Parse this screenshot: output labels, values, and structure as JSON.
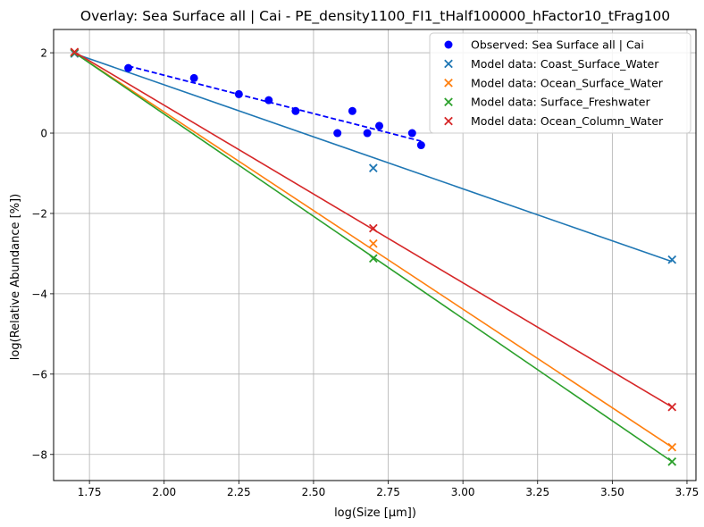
{
  "chart_data": {
    "type": "scatter",
    "title": "Overlay: Sea Surface all | Cai - PE_density1100_FI1_tHalf100000_hFactor10_tFrag100",
    "xlabel": "log(Size [µm])",
    "ylabel": "log(Relative Abundance [%])",
    "xlim": [
      1.63,
      3.78
    ],
    "ylim": [
      -8.65,
      2.58
    ],
    "xticks": [
      1.75,
      2.0,
      2.25,
      2.5,
      2.75,
      3.0,
      3.25,
      3.5,
      3.75
    ],
    "xtick_labels": [
      "1.75",
      "2.00",
      "2.25",
      "2.50",
      "2.75",
      "3.00",
      "3.25",
      "3.50",
      "3.75"
    ],
    "yticks": [
      2,
      0,
      -2,
      -4,
      -6,
      -8
    ],
    "ytick_labels": [
      "2",
      "0",
      "−2",
      "−4",
      "−6",
      "−8"
    ],
    "grid": true,
    "legend_position": "top-right",
    "observed": {
      "name": "Observed: Sea Surface all | Cai",
      "color": "#0000ff",
      "marker": "circle",
      "x": [
        1.88,
        2.1,
        2.25,
        2.35,
        2.44,
        2.58,
        2.63,
        2.68,
        2.72,
        2.83,
        2.86
      ],
      "y": [
        1.62,
        1.37,
        0.97,
        0.82,
        0.55,
        0.0,
        0.55,
        0.0,
        0.18,
        0.0,
        -0.3
      ],
      "fit": {
        "x": [
          1.88,
          2.86
        ],
        "y": [
          1.67,
          -0.2
        ],
        "style": "dashed"
      }
    },
    "series": [
      {
        "name": "Model data: Coast_Surface_Water",
        "color": "#1f77b4",
        "marker": "x",
        "x": [
          1.7,
          2.7,
          3.7
        ],
        "y": [
          1.98,
          -0.87,
          -3.15
        ],
        "line_x": [
          1.7,
          3.7
        ],
        "line_y": [
          1.98,
          -3.2
        ]
      },
      {
        "name": "Model data: Ocean_Surface_Water",
        "color": "#ff7f0e",
        "marker": "x",
        "x": [
          1.7,
          2.7,
          3.7
        ],
        "y": [
          2.0,
          -2.75,
          -7.82
        ],
        "line_x": [
          1.7,
          3.7
        ],
        "line_y": [
          2.0,
          -7.82
        ]
      },
      {
        "name": "Model data: Surface_Freshwater",
        "color": "#2ca02c",
        "marker": "x",
        "x": [
          1.7,
          2.7,
          3.7
        ],
        "y": [
          2.0,
          -3.12,
          -8.18
        ],
        "line_x": [
          1.7,
          3.7
        ],
        "line_y": [
          2.0,
          -8.18
        ]
      },
      {
        "name": "Model data: Ocean_Column_Water",
        "color": "#d62728",
        "marker": "x",
        "x": [
          1.7,
          2.7,
          3.7
        ],
        "y": [
          2.02,
          -2.37,
          -6.82
        ],
        "line_x": [
          1.7,
          3.7
        ],
        "line_y": [
          2.02,
          -6.82
        ]
      }
    ]
  }
}
